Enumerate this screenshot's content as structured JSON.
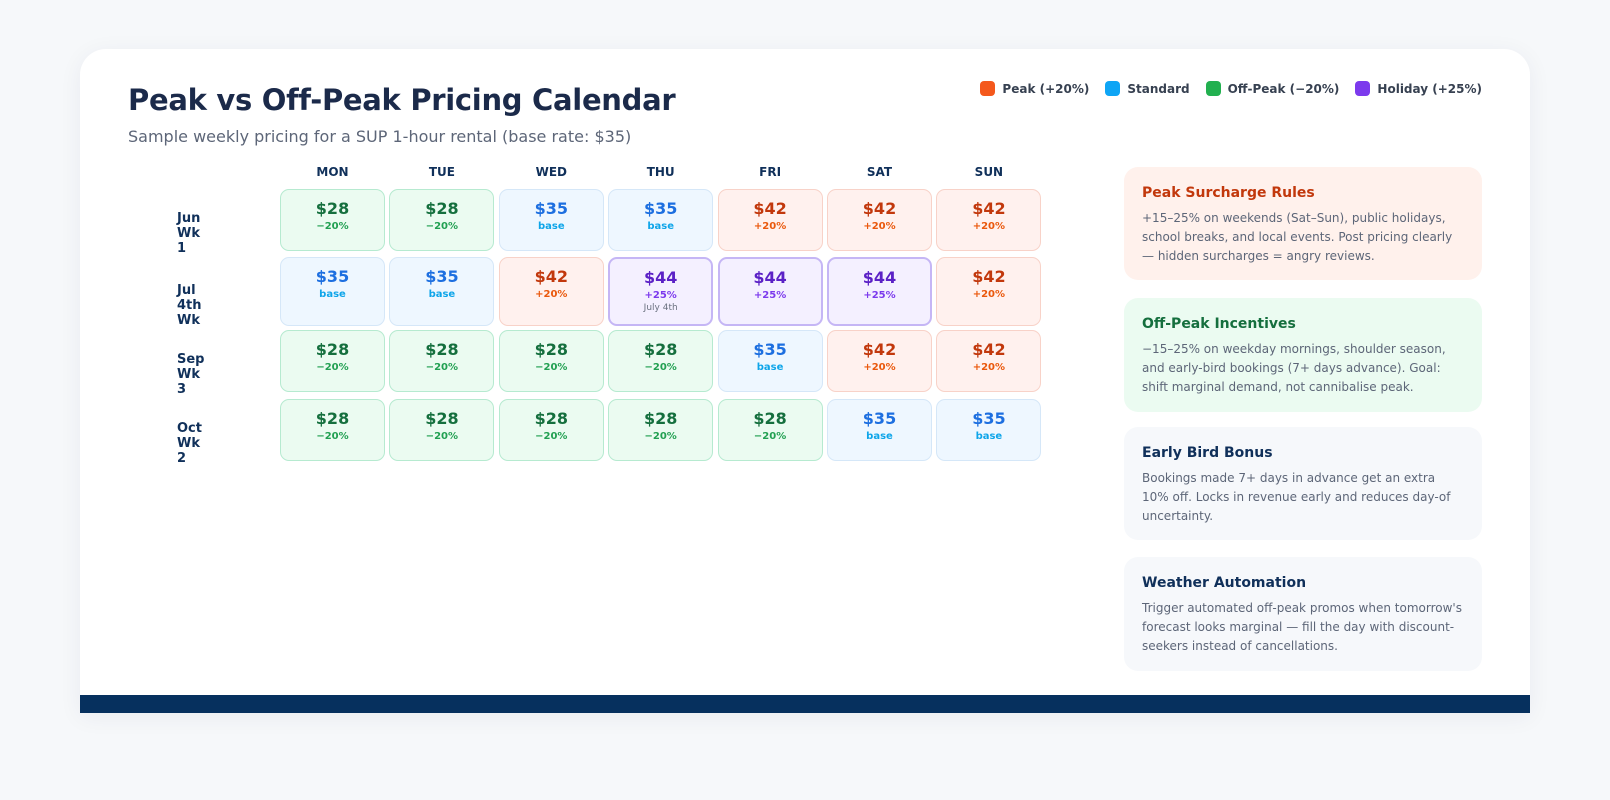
{
  "header": {
    "title": "Peak vs Off-Peak Pricing Calendar",
    "subtitle": "Sample weekly pricing for a SUP 1-hour rental (base rate: $35)"
  },
  "legend": [
    {
      "label": "Peak (+20%)",
      "color": "#f4581c"
    },
    {
      "label": "Standard",
      "color": "#0ea5f5"
    },
    {
      "label": "Off-Peak (−20%)",
      "color": "#22b04f"
    },
    {
      "label": "Holiday (+25%)",
      "color": "#7c3aed"
    }
  ],
  "days": [
    "MON",
    "TUE",
    "WED",
    "THU",
    "FRI",
    "SAT",
    "SUN"
  ],
  "weeks": [
    {
      "label": "Jun Wk 1",
      "cells": [
        {
          "type": "offpeak",
          "price": "$28",
          "pct": "−20%"
        },
        {
          "type": "offpeak",
          "price": "$28",
          "pct": "−20%"
        },
        {
          "type": "standard",
          "price": "$35",
          "pct": "base"
        },
        {
          "type": "standard",
          "price": "$35",
          "pct": "base"
        },
        {
          "type": "peak",
          "price": "$42",
          "pct": "+20%"
        },
        {
          "type": "peak",
          "price": "$42",
          "pct": "+20%"
        },
        {
          "type": "peak",
          "price": "$42",
          "pct": "+20%"
        }
      ]
    },
    {
      "label": "Jul 4th Wk",
      "cells": [
        {
          "type": "standard",
          "price": "$35",
          "pct": "base"
        },
        {
          "type": "standard",
          "price": "$35",
          "pct": "base"
        },
        {
          "type": "peak",
          "price": "$42",
          "pct": "+20%"
        },
        {
          "type": "holiday",
          "price": "$44",
          "pct": "+25%",
          "note": "July 4th"
        },
        {
          "type": "holiday",
          "price": "$44",
          "pct": "+25%"
        },
        {
          "type": "holiday",
          "price": "$44",
          "pct": "+25%"
        },
        {
          "type": "peak",
          "price": "$42",
          "pct": "+20%"
        }
      ]
    },
    {
      "label": "Sep Wk 3",
      "cells": [
        {
          "type": "offpeak",
          "price": "$28",
          "pct": "−20%"
        },
        {
          "type": "offpeak",
          "price": "$28",
          "pct": "−20%"
        },
        {
          "type": "offpeak",
          "price": "$28",
          "pct": "−20%"
        },
        {
          "type": "offpeak",
          "price": "$28",
          "pct": "−20%"
        },
        {
          "type": "standard",
          "price": "$35",
          "pct": "base"
        },
        {
          "type": "peak",
          "price": "$42",
          "pct": "+20%"
        },
        {
          "type": "peak",
          "price": "$42",
          "pct": "+20%"
        }
      ]
    },
    {
      "label": "Oct Wk 2",
      "cells": [
        {
          "type": "offpeak",
          "price": "$28",
          "pct": "−20%"
        },
        {
          "type": "offpeak",
          "price": "$28",
          "pct": "−20%"
        },
        {
          "type": "offpeak",
          "price": "$28",
          "pct": "−20%"
        },
        {
          "type": "offpeak",
          "price": "$28",
          "pct": "−20%"
        },
        {
          "type": "offpeak",
          "price": "$28",
          "pct": "−20%"
        },
        {
          "type": "standard",
          "price": "$35",
          "pct": "base"
        },
        {
          "type": "standard",
          "price": "$35",
          "pct": "base"
        }
      ]
    }
  ],
  "panels": [
    {
      "title": "Peak Surcharge Rules",
      "body": "+15–25% on weekends (Sat–Sun), public holidays, school breaks, and local events. Post pricing clearly — hidden surcharges = angry reviews.",
      "bg": "#fff1ec",
      "title_color": "#c2380c"
    },
    {
      "title": "Off-Peak Incentives",
      "body": "−15–25% on weekday mornings, shoulder season, and early-bird bookings (7+ days advance). Goal: shift marginal demand, not cannibalise peak.",
      "bg": "#ebfbf1",
      "title_color": "#156f3e"
    },
    {
      "title": "Early Bird Bonus",
      "body": "Bookings made 7+ days in advance get an extra 10% off. Locks in revenue early and reduces day-of uncertainty.",
      "bg": "#f6f8fb",
      "title_color": "#10305a"
    },
    {
      "title": "Weather Automation",
      "body": "Trigger automated off-peak promos when tomorrow's forecast looks marginal — fill the day with discount-seekers instead of cancellations.",
      "bg": "#f6f8fb",
      "title_color": "#10305a"
    }
  ]
}
